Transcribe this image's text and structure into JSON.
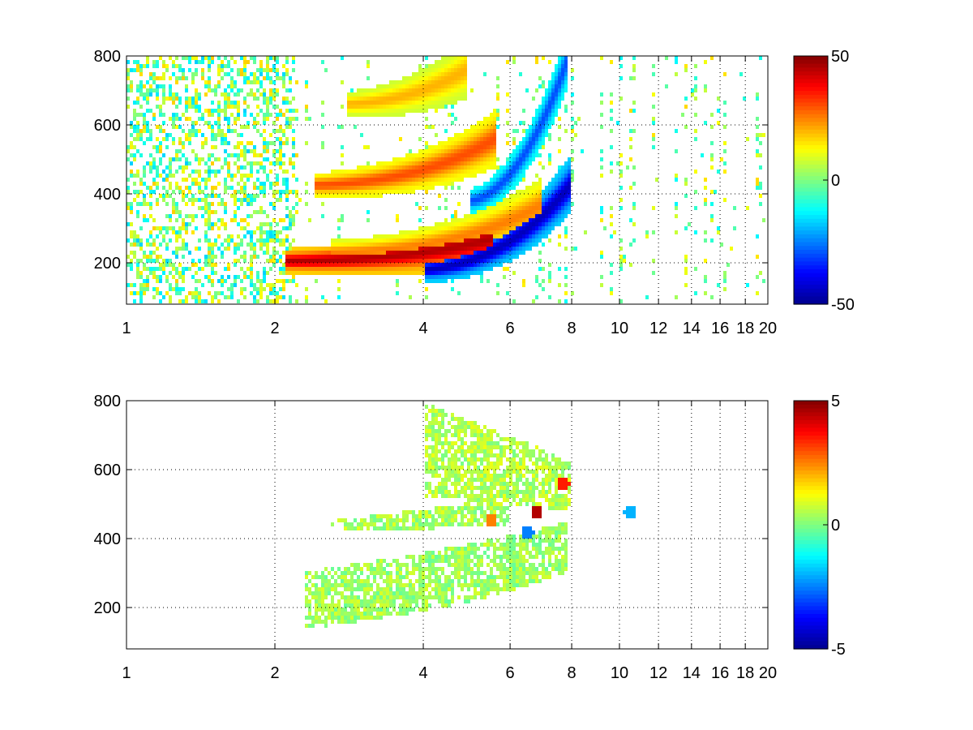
{
  "figure": {
    "background": "#ffffff"
  },
  "colormap": {
    "name": "jet",
    "stops": [
      "#00008f",
      "#0000ff",
      "#00ffff",
      "#ffff00",
      "#ff0000",
      "#800000"
    ]
  },
  "chart_data": [
    {
      "type": "heatmap",
      "title": "",
      "xlabel": "",
      "ylabel": "",
      "xlim": [
        1,
        20
      ],
      "ylim": [
        80,
        800
      ],
      "xscale": "log",
      "xticks": [
        1,
        2,
        4,
        6,
        8,
        10,
        12,
        14,
        16,
        18,
        20
      ],
      "xtick_labels": [
        "1",
        "2",
        "4",
        "6",
        "8",
        "10",
        "12",
        "14",
        "16",
        "18",
        "20"
      ],
      "yticks": [
        200,
        400,
        600,
        800
      ],
      "ytick_labels": [
        "200",
        "400",
        "600",
        "800"
      ],
      "grid": true,
      "grid_style": "dotted",
      "colorbar": {
        "min": -50,
        "max": 50,
        "ticks": [
          50,
          0,
          -50
        ],
        "tick_labels": [
          "50",
          "0",
          "-50"
        ]
      },
      "features": [
        {
          "kind": "ridge",
          "x_range": [
            2.1,
            5.5
          ],
          "y_start": 205,
          "y_end": 270,
          "value": 45
        },
        {
          "kind": "ridge",
          "x_range": [
            2.6,
            7.0
          ],
          "y_start": 230,
          "y_end": 370,
          "value": 25
        },
        {
          "kind": "ridge",
          "x_range": [
            4.0,
            8.0
          ],
          "y_start": 180,
          "y_end": 430,
          "value": -45
        },
        {
          "kind": "ridge",
          "x_range": [
            2.4,
            5.6
          ],
          "y_start": 425,
          "y_end": 560,
          "value": 30
        },
        {
          "kind": "ridge",
          "x_range": [
            5.0,
            7.8
          ],
          "y_start": 380,
          "y_end": 780,
          "value": -30
        },
        {
          "kind": "ridge",
          "x_range": [
            2.8,
            4.9
          ],
          "y_start": 660,
          "y_end": 760,
          "value": 20
        }
      ]
    },
    {
      "type": "heatmap",
      "title": "",
      "xlabel": "",
      "ylabel": "",
      "xlim": [
        1,
        20
      ],
      "ylim": [
        80,
        800
      ],
      "xscale": "log",
      "xticks": [
        1,
        2,
        4,
        6,
        8,
        10,
        12,
        14,
        16,
        18,
        20
      ],
      "xtick_labels": [
        "1",
        "2",
        "4",
        "6",
        "8",
        "10",
        "12",
        "14",
        "16",
        "18",
        "20"
      ],
      "yticks": [
        200,
        400,
        600,
        800
      ],
      "ytick_labels": [
        "200",
        "400",
        "600",
        "800"
      ],
      "grid": true,
      "grid_style": "dotted",
      "colorbar": {
        "min": -5,
        "max": 5,
        "ticks": [
          5,
          0,
          -5
        ],
        "tick_labels": [
          "5",
          "0",
          "-5"
        ]
      },
      "features": [
        {
          "kind": "band",
          "x_range": [
            2.3,
            7.8
          ],
          "y_low_start": 140,
          "y_low_end": 300,
          "y_high_start": 300,
          "y_high_end": 450,
          "value": 0.3
        },
        {
          "kind": "band",
          "x_range": [
            2.6,
            6.0
          ],
          "y_low_start": 420,
          "y_low_end": 440,
          "y_high_start": 450,
          "y_high_end": 520,
          "value": 0.4
        },
        {
          "kind": "band",
          "x_range": [
            4.0,
            8.0
          ],
          "y_low_start": 520,
          "y_low_end": 480,
          "y_high_start": 800,
          "y_high_end": 620,
          "value": 0.5
        },
        {
          "kind": "spot",
          "x": 6.8,
          "y": 480,
          "value": 4.5
        },
        {
          "kind": "spot",
          "x": 5.5,
          "y": 450,
          "value": 2.5
        },
        {
          "kind": "spot",
          "x": 7.7,
          "y": 560,
          "value": 3.5
        },
        {
          "kind": "spot",
          "x": 6.5,
          "y": 420,
          "value": -2.5
        },
        {
          "kind": "spot",
          "x": 10.5,
          "y": 478,
          "value": -2.0
        }
      ]
    }
  ]
}
